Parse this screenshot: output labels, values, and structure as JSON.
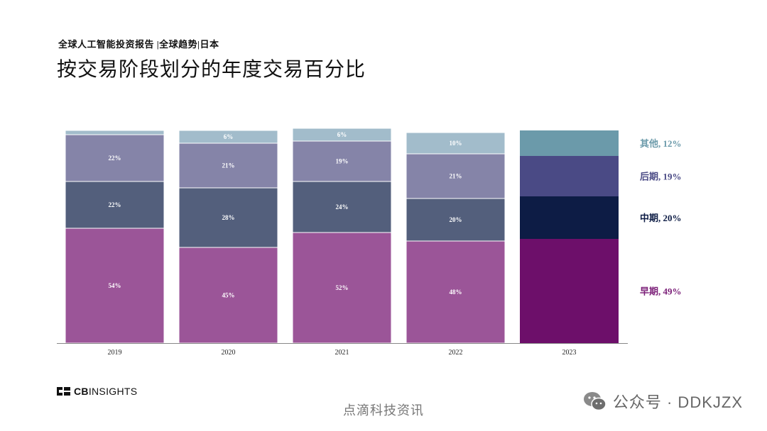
{
  "subtitle": "全球人工智能投资报告 |全球趋势|日本",
  "title": "按交易阶段划分的年度交易百分比",
  "logo": {
    "brand": "CBINSIGHTS",
    "bold": "CB",
    "light": "INSIGHTS"
  },
  "watermark": {
    "center": "点滴科技资讯",
    "right": "公众号 · DDKJZX"
  },
  "chart_data": {
    "type": "bar",
    "stacked": true,
    "orientation": "vertical",
    "categories": [
      "2019",
      "2020",
      "2021",
      "2022",
      "2023"
    ],
    "ylim": [
      0,
      100
    ],
    "xlabel": "",
    "ylabel": "",
    "grid": false,
    "legend_position": "right",
    "series": [
      {
        "name": "早期",
        "values": [
          54,
          45,
          52,
          48,
          49
        ],
        "labels": [
          "54%",
          "45%",
          "52%",
          "48%",
          ""
        ]
      },
      {
        "name": "中期",
        "values": [
          22,
          28,
          24,
          20,
          20
        ],
        "labels": [
          "22%",
          "28%",
          "24%",
          "20%",
          ""
        ]
      },
      {
        "name": "后期",
        "values": [
          22,
          21,
          19,
          21,
          19
        ],
        "labels": [
          "22%",
          "21%",
          "19%",
          "21%",
          ""
        ]
      },
      {
        "name": "其他",
        "values": [
          2,
          6,
          6,
          10,
          12
        ],
        "labels": [
          "",
          "6%",
          "6%",
          "10%",
          ""
        ]
      }
    ],
    "legend_labels": [
      "早期, 49%",
      "中期, 20%",
      "后期, 19%",
      "其他, 12%"
    ],
    "colors": {
      "muted": [
        "#9b5598",
        "#535f7c",
        "#8584a8",
        "#a2bccb"
      ],
      "highlight": [
        "#6d0f6a",
        "#0d1c45",
        "#4a4a85",
        "#6b9aaa"
      ],
      "legend_text": [
        "#7b1f78",
        "#0d1c45",
        "#4a4a85",
        "#6b9aaa"
      ],
      "axis": "#888888"
    },
    "highlight_category": "2023"
  }
}
